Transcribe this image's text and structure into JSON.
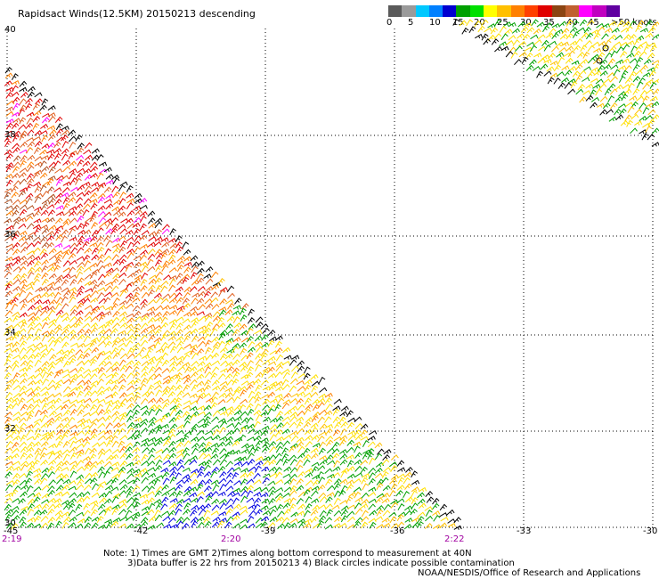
{
  "title": "Rapidsact Winds(12.5KM) 20150213 descending",
  "colorbar": {
    "colors": [
      "#5a5a5a",
      "#9a9a9a",
      "#00c8ff",
      "#0080ff",
      "#0000d0",
      "#00a000",
      "#00e000",
      "#ffff00",
      "#ffc000",
      "#ff8000",
      "#ff4000",
      "#e00000",
      "#8b4513",
      "#c06030",
      "#ff00ff",
      "#c000c0",
      "#6000a0"
    ],
    "labels": [
      "0",
      "5",
      "10",
      "15",
      "20",
      "25",
      "30",
      "35",
      "40",
      "45",
      ">50 knots"
    ]
  },
  "axes": {
    "lat_labels": [
      "40",
      "38",
      "36",
      "34",
      "32",
      "30"
    ],
    "lon_labels": [
      "-45",
      "-42",
      "-39",
      "-36",
      "-33",
      "-30"
    ],
    "time_labels": [
      "2:19",
      "2:20",
      "2:22"
    ]
  },
  "notes": {
    "line1": "Note: 1) Times are GMT 2)Times along bottom correspond to measurement at 40N",
    "line2": "3)Data buffer is 22 hrs from 20150213 4) Black circles indicate possible contamination",
    "line3": "NOAA/NESDIS/Office of Research and Applications"
  },
  "chart_data": {
    "type": "map",
    "title": "Rapidsact Winds(12.5KM) 20150213 descending",
    "lat_range": [
      30,
      40
    ],
    "lon_range": [
      -45,
      -30
    ],
    "wind_speed_scale_knots": [
      0,
      5,
      10,
      15,
      20,
      25,
      30,
      35,
      40,
      45,
      50
    ],
    "swaths": [
      {
        "name": "main",
        "region": "west",
        "dominant_speed_knots": "15-35"
      },
      {
        "name": "northeast",
        "region": "north-east corner",
        "dominant_speed_knots": "15-30"
      }
    ]
  }
}
